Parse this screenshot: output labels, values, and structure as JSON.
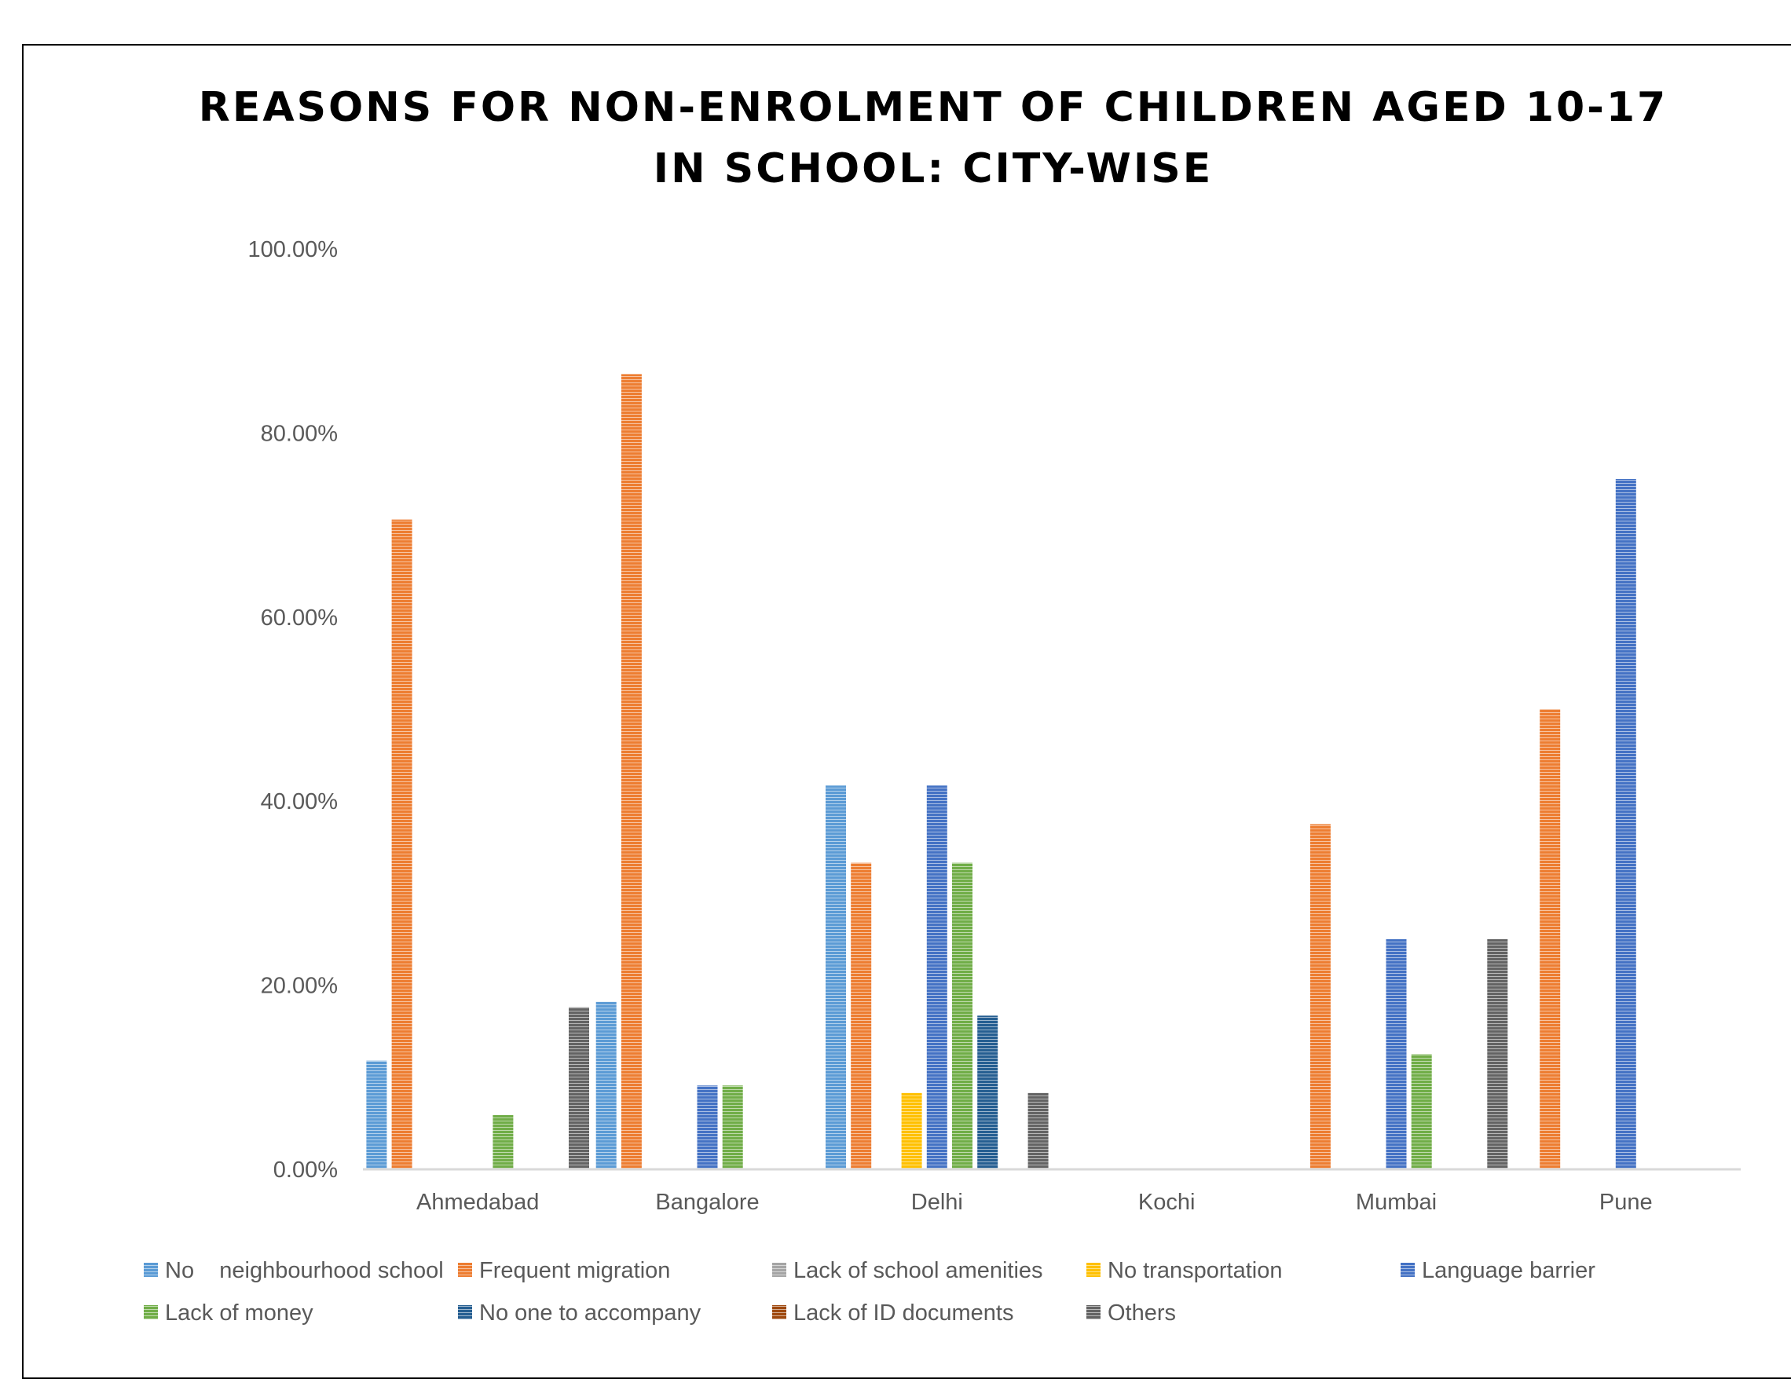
{
  "chart_data": {
    "type": "bar",
    "title": "REASONS FOR NON-ENROLMENT OF CHILDREN AGED 10-17 IN SCHOOL: CITY-WISE",
    "title_lines": [
      "REASONS FOR NON-ENROLMENT OF CHILDREN AGED 10-17",
      "IN SCHOOL: CITY-WISE"
    ],
    "xlabel": "",
    "ylabel": "",
    "ylim": [
      0,
      100
    ],
    "y_ticks": [
      0,
      20,
      40,
      60,
      80,
      100
    ],
    "y_tick_labels": [
      "0.00%",
      "20.00%",
      "40.00%",
      "60.00%",
      "80.00%",
      "100.00%"
    ],
    "categories": [
      "Ahmedabad",
      "Bangalore",
      "Delhi",
      "Kochi",
      "Mumbai",
      "Pune"
    ],
    "series": [
      {
        "name": "No    neighbourhood school",
        "color": "#5b9bd5",
        "values": [
          11.8,
          18.2,
          41.7,
          0,
          0,
          0
        ]
      },
      {
        "name": "Frequent migration",
        "color": "#ed7d31",
        "values": [
          70.6,
          86.4,
          33.3,
          0,
          37.5,
          50
        ]
      },
      {
        "name": "Lack of school amenities",
        "color": "#a5a5a5",
        "values": [
          0,
          0,
          0,
          0,
          0,
          0
        ]
      },
      {
        "name": "No transportation",
        "color": "#ffc000",
        "values": [
          0,
          0,
          8.3,
          0,
          0,
          0
        ]
      },
      {
        "name": "Language barrier",
        "color": "#4472c4",
        "values": [
          0,
          9.1,
          41.7,
          0,
          25,
          75
        ]
      },
      {
        "name": "Lack of money",
        "color": "#70ad47",
        "values": [
          5.9,
          9.1,
          33.3,
          0,
          12.5,
          0
        ]
      },
      {
        "name": "No one to accompany",
        "color": "#255e91",
        "values": [
          0,
          0,
          16.7,
          0,
          0,
          0
        ]
      },
      {
        "name": "Lack of ID documents",
        "color": "#9e480e",
        "values": [
          0,
          0,
          0,
          0,
          0,
          0
        ]
      },
      {
        "name": "Others",
        "color": "#636363",
        "values": [
          17.6,
          0,
          8.3,
          0,
          25,
          0
        ]
      }
    ],
    "grid": false,
    "legend_position": "bottom"
  }
}
